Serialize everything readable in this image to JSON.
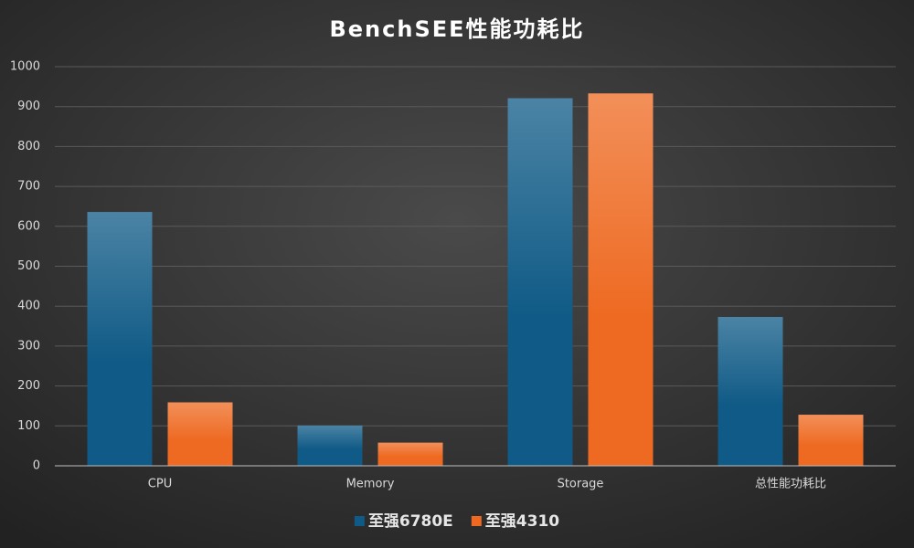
{
  "chart_data": {
    "type": "bar",
    "title": "BenchSEE性能功耗比",
    "categories": [
      "CPU",
      "Memory",
      "Storage",
      "总性能功耗比"
    ],
    "series": [
      {
        "name": "至强6780E",
        "color": "#0f5a86",
        "values": [
          636,
          101,
          921,
          373
        ]
      },
      {
        "name": "至强4310",
        "color": "#ee6a22",
        "values": [
          159,
          58,
          933,
          128
        ]
      }
    ],
    "ylim": [
      0,
      1000
    ],
    "yticks": [
      0,
      100,
      200,
      300,
      400,
      500,
      600,
      700,
      800,
      900,
      1000
    ],
    "grid": true,
    "legend": "bottom"
  }
}
